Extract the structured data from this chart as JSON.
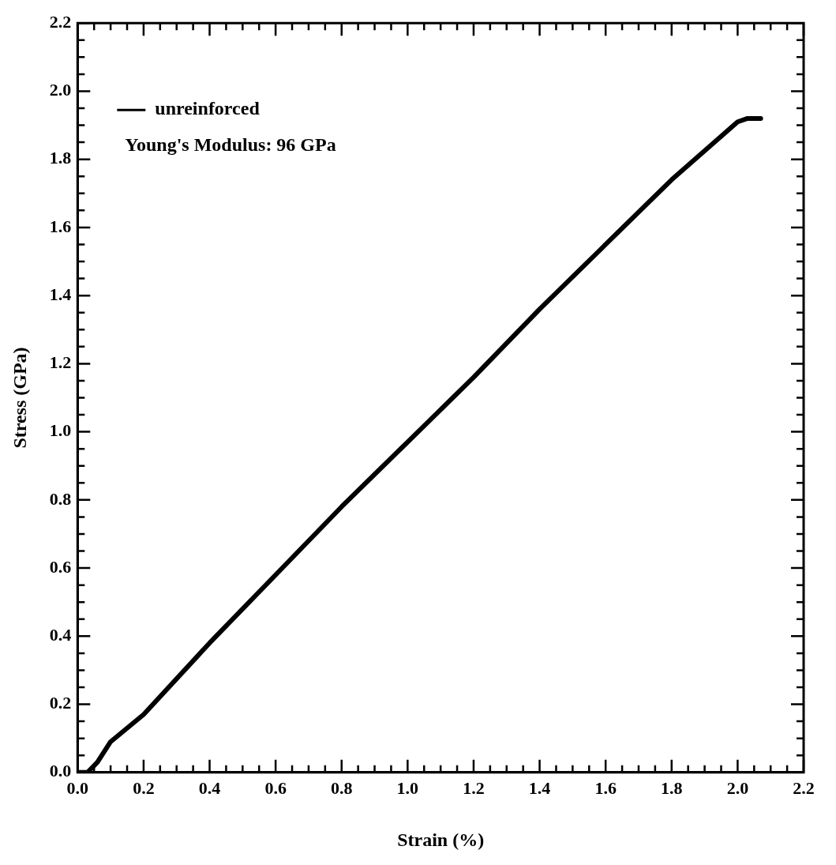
{
  "chart_data": {
    "type": "line",
    "xlabel": "Strain (%)",
    "ylabel": "Stress (GPa)",
    "annotations": [
      "Young's Modulus: 96 GPa"
    ],
    "legend": "top left",
    "grid": false,
    "marker": "none",
    "line_style": "solid",
    "xlim": [
      0,
      2.2
    ],
    "ylim": [
      0,
      2.2
    ],
    "xticks": [
      {
        "value": 0,
        "label": "0.0"
      },
      {
        "value": 0.05,
        "label": null
      },
      {
        "value": 0.1,
        "label": null
      },
      {
        "value": 0.15,
        "label": null
      },
      {
        "value": 0.2,
        "label": "0.2"
      },
      {
        "value": 0.25,
        "label": null
      },
      {
        "value": 0.3,
        "label": null
      },
      {
        "value": 0.35,
        "label": null
      },
      {
        "value": 0.4,
        "label": "0.4"
      },
      {
        "value": 0.45,
        "label": null
      },
      {
        "value": 0.5,
        "label": null
      },
      {
        "value": 0.55,
        "label": null
      },
      {
        "value": 0.6,
        "label": "0.6"
      },
      {
        "value": 0.65,
        "label": null
      },
      {
        "value": 0.7,
        "label": null
      },
      {
        "value": 0.75,
        "label": null
      },
      {
        "value": 0.8,
        "label": "0.8"
      },
      {
        "value": 0.85,
        "label": null
      },
      {
        "value": 0.9,
        "label": null
      },
      {
        "value": 0.95,
        "label": null
      },
      {
        "value": 1,
        "label": "1.0"
      },
      {
        "value": 1.05,
        "label": null
      },
      {
        "value": 1.1,
        "label": null
      },
      {
        "value": 1.15,
        "label": null
      },
      {
        "value": 1.2,
        "label": "1.2"
      },
      {
        "value": 1.25,
        "label": null
      },
      {
        "value": 1.3,
        "label": null
      },
      {
        "value": 1.35,
        "label": null
      },
      {
        "value": 1.4,
        "label": "1.4"
      },
      {
        "value": 1.45,
        "label": null
      },
      {
        "value": 1.5,
        "label": null
      },
      {
        "value": 1.55,
        "label": null
      },
      {
        "value": 1.6,
        "label": "1.6"
      },
      {
        "value": 1.65,
        "label": null
      },
      {
        "value": 1.7,
        "label": null
      },
      {
        "value": 1.75,
        "label": null
      },
      {
        "value": 1.8,
        "label": "1.8"
      },
      {
        "value": 1.85,
        "label": null
      },
      {
        "value": 1.9,
        "label": null
      },
      {
        "value": 1.95,
        "label": null
      },
      {
        "value": 2,
        "label": "2.0"
      },
      {
        "value": 2.05,
        "label": null
      },
      {
        "value": 2.1,
        "label": null
      },
      {
        "value": 2.15,
        "label": null
      },
      {
        "value": 2.2,
        "label": "2.2"
      }
    ],
    "yticks": [
      {
        "value": 0,
        "label": "0.0"
      },
      {
        "value": 0.05,
        "label": null
      },
      {
        "value": 0.1,
        "label": null
      },
      {
        "value": 0.15,
        "label": null
      },
      {
        "value": 0.2,
        "label": "0.2"
      },
      {
        "value": 0.25,
        "label": null
      },
      {
        "value": 0.3,
        "label": null
      },
      {
        "value": 0.35,
        "label": null
      },
      {
        "value": 0.4,
        "label": "0.4"
      },
      {
        "value": 0.45,
        "label": null
      },
      {
        "value": 0.5,
        "label": null
      },
      {
        "value": 0.55,
        "label": null
      },
      {
        "value": 0.6,
        "label": "0.6"
      },
      {
        "value": 0.65,
        "label": null
      },
      {
        "value": 0.7,
        "label": null
      },
      {
        "value": 0.75,
        "label": null
      },
      {
        "value": 0.8,
        "label": "0.8"
      },
      {
        "value": 0.85,
        "label": null
      },
      {
        "value": 0.9,
        "label": null
      },
      {
        "value": 0.95,
        "label": null
      },
      {
        "value": 1,
        "label": "1.0"
      },
      {
        "value": 1.05,
        "label": null
      },
      {
        "value": 1.1,
        "label": null
      },
      {
        "value": 1.15,
        "label": null
      },
      {
        "value": 1.2,
        "label": "1.2"
      },
      {
        "value": 1.25,
        "label": null
      },
      {
        "value": 1.3,
        "label": null
      },
      {
        "value": 1.35,
        "label": null
      },
      {
        "value": 1.4,
        "label": "1.4"
      },
      {
        "value": 1.45,
        "label": null
      },
      {
        "value": 1.5,
        "label": null
      },
      {
        "value": 1.55,
        "label": null
      },
      {
        "value": 1.6,
        "label": "1.6"
      },
      {
        "value": 1.65,
        "label": null
      },
      {
        "value": 1.7,
        "label": null
      },
      {
        "value": 1.75,
        "label": null
      },
      {
        "value": 1.8,
        "label": "1.8"
      },
      {
        "value": 1.85,
        "label": null
      },
      {
        "value": 1.9,
        "label": null
      },
      {
        "value": 1.95,
        "label": null
      },
      {
        "value": 2,
        "label": "2.0"
      },
      {
        "value": 2.05,
        "label": null
      },
      {
        "value": 2.1,
        "label": null
      },
      {
        "value": 2.15,
        "label": null
      },
      {
        "value": 2.2,
        "label": "2.2"
      }
    ],
    "series": [
      {
        "name": "unreinforced",
        "color": "#000000",
        "x": [
          0,
          0.03,
          0.06,
          0.1,
          0.2,
          0.4,
          0.6,
          0.8,
          1.0,
          1.2,
          1.4,
          1.6,
          1.8,
          2.0,
          2.03,
          2.05,
          2.07
        ],
        "values": [
          0,
          0,
          0.03,
          0.09,
          0.17,
          0.38,
          0.58,
          0.78,
          0.97,
          1.16,
          1.36,
          1.55,
          1.74,
          1.91,
          1.92,
          1.92,
          1.92
        ]
      }
    ]
  }
}
